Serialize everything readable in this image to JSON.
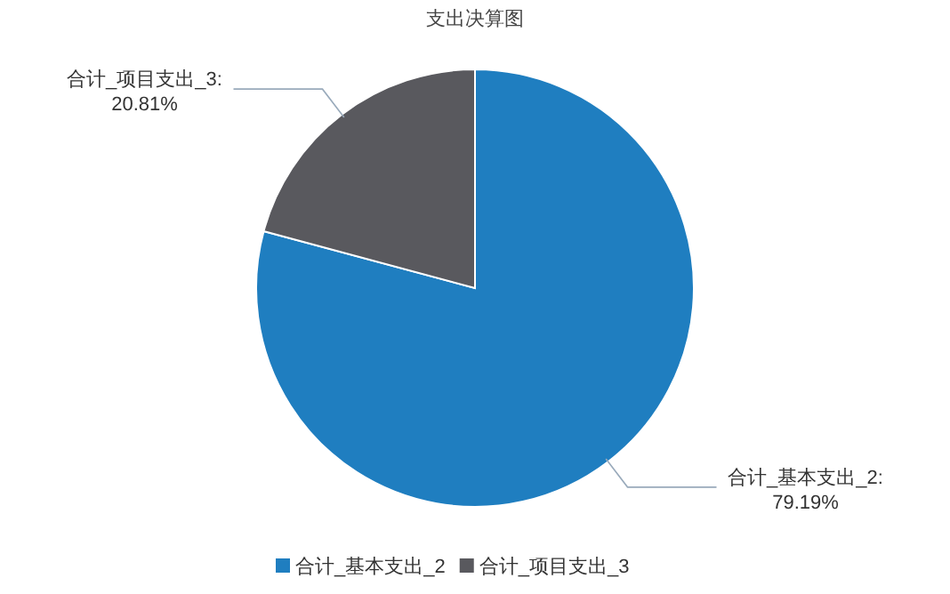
{
  "chart_data": {
    "type": "pie",
    "title": "支出决算图",
    "categories": [
      "合计_基本支出_2",
      "合计_项目支出_3"
    ],
    "values": [
      79.19,
      20.81
    ],
    "colors": [
      "#1f7ec0",
      "#59595e"
    ],
    "value_labels": [
      "合计_基本支出_2:\n79.19%",
      "合计_项目支出_3:\n20.81%"
    ],
    "legend": "bottom"
  }
}
